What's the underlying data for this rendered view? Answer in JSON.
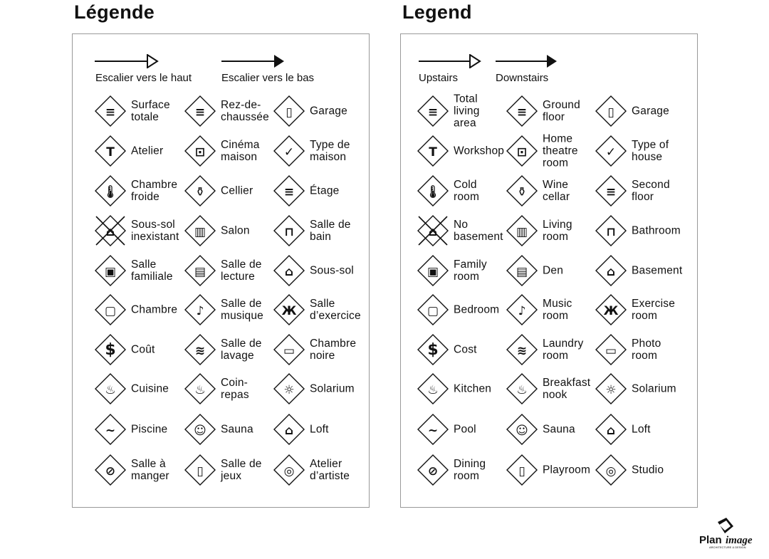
{
  "french": {
    "title": "Légende",
    "stairs_up": "Escalier vers le haut",
    "stairs_down": "Escalier vers le bas",
    "items": [
      [
        "Surface\ntotale",
        "Rez-de-\nchaussée",
        "Garage"
      ],
      [
        "Atelier",
        "Cinéma\nmaison",
        "Type de\nmaison"
      ],
      [
        "Chambre\nfroide",
        "Cellier",
        "Étage"
      ],
      [
        "Sous-sol\ninexistant",
        "Salon",
        "Salle de\nbain"
      ],
      [
        "Salle\nfamiliale",
        "Salle de\nlecture",
        "Sous-sol"
      ],
      [
        "Chambre",
        "Salle de\nmusique",
        "Salle\nd’exercice"
      ],
      [
        "Coût",
        "Salle de\nlavage",
        "Chambre\nnoire"
      ],
      [
        "Cuisine",
        "Coin-\nrepas",
        "Solarium"
      ],
      [
        "Piscine",
        "Sauna",
        "Loft"
      ],
      [
        "Salle à\nmanger",
        "Salle de\njeux",
        "Atelier\nd’artiste"
      ]
    ]
  },
  "english": {
    "title": "Legend",
    "stairs_up": "Upstairs",
    "stairs_down": "Downstairs",
    "items": [
      [
        "Total\nliving\narea",
        "Ground\nfloor",
        "Garage"
      ],
      [
        "Workshop",
        "Home\ntheatre\nroom",
        "Type of\nhouse"
      ],
      [
        "Cold\nroom",
        "Wine\ncellar",
        "Second\nfloor"
      ],
      [
        "No\nbasement",
        "Living\nroom",
        "Bathroom"
      ],
      [
        "Family\nroom",
        "Den",
        "Basement"
      ],
      [
        "Bedroom",
        "Music\nroom",
        "Exercise\nroom"
      ],
      [
        "Cost",
        "Laundry\nroom",
        "Photo\nroom"
      ],
      [
        "Kitchen",
        "Breakfast\nnook",
        "Solarium"
      ],
      [
        "Pool",
        "Sauna",
        "Loft"
      ],
      [
        "Dining\nroom",
        "Playroom",
        "Studio"
      ]
    ]
  },
  "icons": [
    [
      "total-living-area",
      "ground-floor",
      "garage"
    ],
    [
      "workshop-hammer",
      "home-theatre",
      "type-of-house"
    ],
    [
      "cold-room-thermometer",
      "wine-cellar",
      "second-floor"
    ],
    [
      "no-basement",
      "living-room",
      "bathroom"
    ],
    [
      "family-room-tv",
      "den-book",
      "basement"
    ],
    [
      "bedroom",
      "music-note",
      "exercise-weights"
    ],
    [
      "cost-dollar",
      "laundry",
      "photo-room"
    ],
    [
      "kitchen-pot",
      "breakfast-nook",
      "solarium-sun"
    ],
    [
      "pool",
      "sauna",
      "loft"
    ],
    [
      "dining-plate",
      "playroom",
      "studio-palette"
    ]
  ],
  "glyphs": [
    [
      "≡",
      "≡",
      "▯"
    ],
    [
      "T",
      "⊡",
      "✓"
    ],
    [
      "🌡︎",
      "⚱︎",
      "≡"
    ],
    [
      "⌂",
      "▥",
      "⊓"
    ],
    [
      "▣",
      "▤",
      "⌂"
    ],
    [
      "▢",
      "♪",
      "Ж"
    ],
    [
      "$",
      "≋",
      "▭"
    ],
    [
      "♨",
      "♨",
      "☼"
    ],
    [
      "∼",
      "☺",
      "⌂"
    ],
    [
      "⊘",
      "▯",
      "◎"
    ]
  ],
  "logo": {
    "name": "PlanImage",
    "tagline": "ARCHITECTURE & DESIGN"
  }
}
